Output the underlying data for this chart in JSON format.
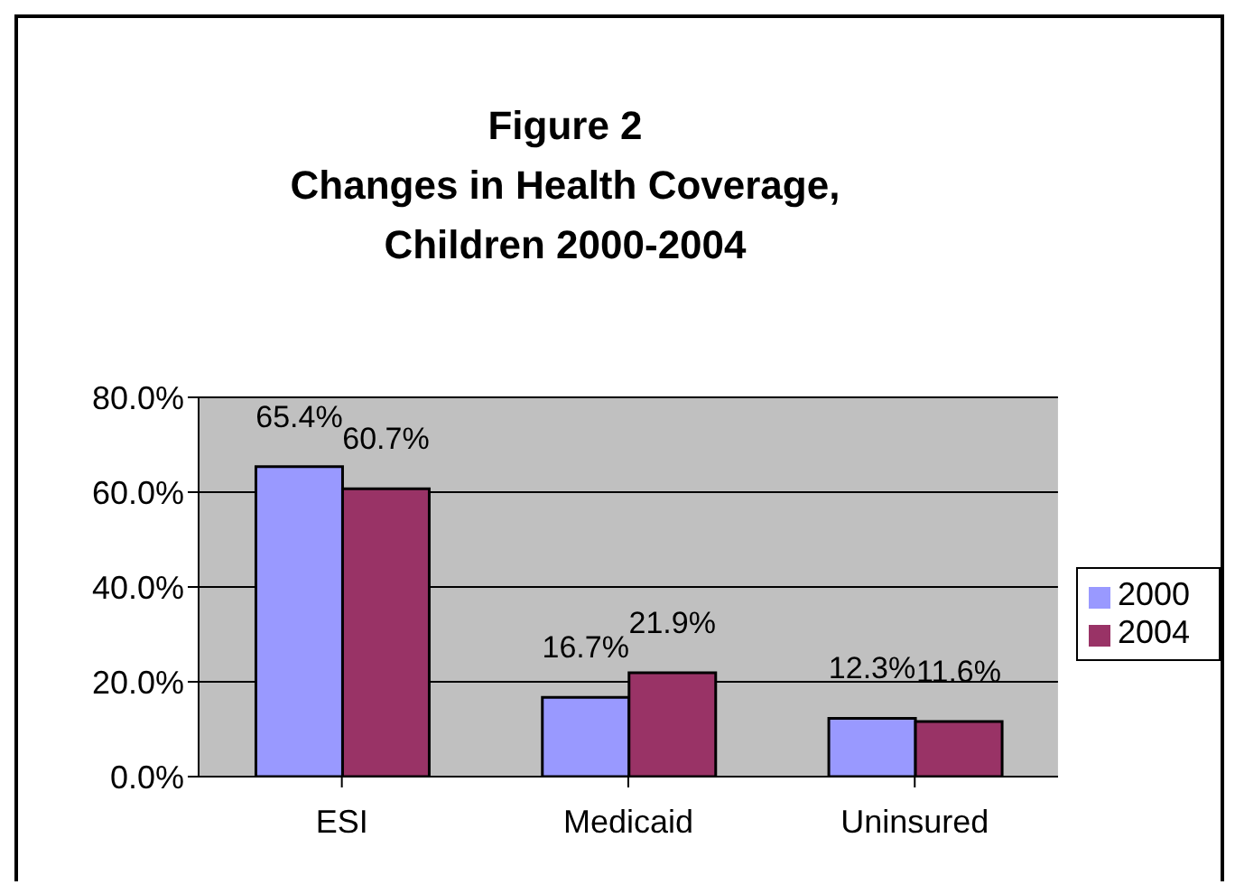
{
  "chart_data": {
    "type": "bar",
    "title": "Figure 2\nChanges in Health Coverage,\nChildren 2000-2004",
    "categories": [
      "ESI",
      "Medicaid",
      "Uninsured"
    ],
    "series": [
      {
        "name": "2000",
        "color": "#9999ff",
        "values": [
          65.4,
          16.7,
          12.3
        ],
        "value_labels": [
          "65.4%",
          "16.7%",
          "12.3%"
        ]
      },
      {
        "name": "2004",
        "color": "#993366",
        "values": [
          60.7,
          21.9,
          11.6
        ],
        "value_labels": [
          "60.7%",
          "21.9%",
          "11.6%"
        ]
      }
    ],
    "ylim": [
      0,
      80
    ],
    "yticks": [
      {
        "value": 0,
        "label": "0.0%"
      },
      {
        "value": 20,
        "label": "20.0%"
      },
      {
        "value": 40,
        "label": "40.0%"
      },
      {
        "value": 60,
        "label": "60.0%"
      },
      {
        "value": 80,
        "label": "80.0%"
      }
    ],
    "grid": "y",
    "legend": "right"
  }
}
